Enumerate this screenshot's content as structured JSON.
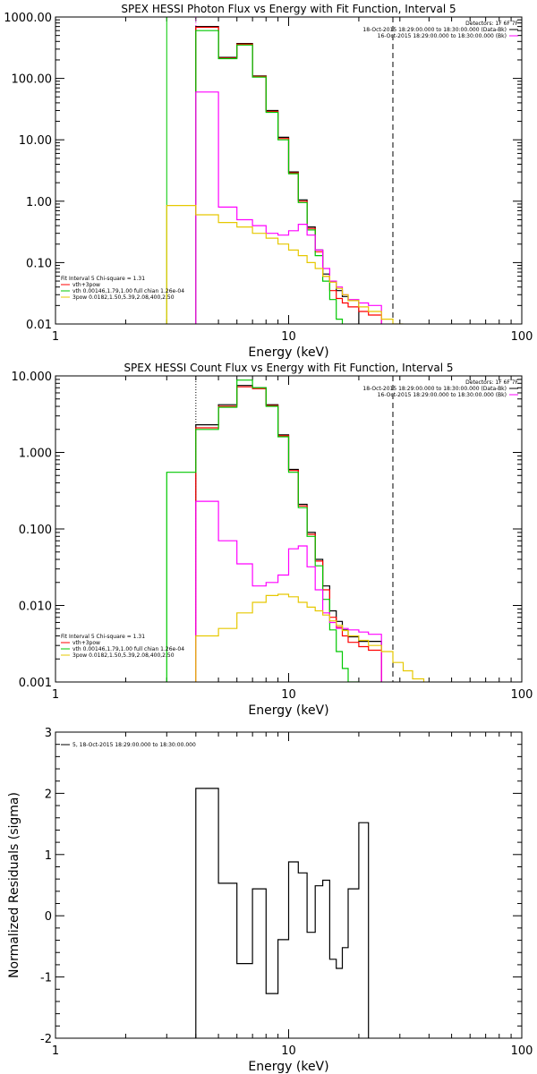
{
  "chart_data": [
    {
      "type": "line",
      "step": true,
      "title": "SPEX HESSI Photon Flux vs Energy with Fit Function, Interval 5",
      "xlabel": "Energy (keV)",
      "ylabel": "",
      "xscale": "log",
      "yscale": "log",
      "xlim": [
        1,
        100
      ],
      "ylim": [
        0.01,
        1000
      ],
      "xticks": [
        1,
        10,
        100
      ],
      "xtick_labels": [
        "1",
        "10",
        "100"
      ],
      "yticks": [
        0.01,
        0.1,
        1,
        10,
        100,
        1000
      ],
      "ytick_labels": [
        "0.01",
        "0.10",
        "1.00",
        "10.00",
        "100.00",
        "1000.00"
      ],
      "vlines": [
        {
          "x": 3.0,
          "style": "solid",
          "color": "#00c800"
        },
        {
          "x": 4.0,
          "style": "dotted",
          "color": "#ff00ff"
        },
        {
          "x": 28.0,
          "style": "dashed",
          "color": "#000000"
        }
      ],
      "edges": [
        3,
        4,
        5,
        6,
        7,
        8,
        9,
        10,
        11,
        12,
        13,
        14,
        15,
        16,
        17,
        18,
        20,
        22,
        25,
        28,
        31,
        34
      ],
      "series": [
        {
          "label": "vth+3pow",
          "color": "#000000",
          "values": [
            null,
            700,
            220,
            370,
            110,
            30,
            11,
            3.0,
            1.05,
            0.38,
            0.16,
            0.065,
            0.05,
            0.035,
            0.028,
            0.024,
            null,
            null,
            null,
            null,
            null
          ]
        },
        {
          "label": "",
          "color": "#ff0000",
          "values": [
            null,
            680,
            215,
            360,
            108,
            29,
            10.5,
            2.9,
            1.0,
            0.36,
            0.15,
            0.06,
            0.035,
            0.026,
            0.022,
            0.019,
            0.016,
            0.014,
            null,
            null,
            null
          ]
        },
        {
          "label": "vth 0.00146,1.79,1.00  full chian 1.26e-04",
          "color": "#00c800",
          "values": [
            null,
            600,
            210,
            350,
            105,
            28,
            10,
            2.8,
            0.95,
            0.34,
            0.13,
            0.05,
            0.025,
            0.012,
            0.008,
            null,
            null,
            null,
            null,
            null,
            null
          ]
        },
        {
          "label": "",
          "color": "#ff00ff",
          "values": [
            null,
            60,
            0.8,
            0.5,
            0.4,
            0.3,
            0.28,
            0.33,
            0.42,
            0.28,
            0.16,
            0.08,
            0.05,
            0.04,
            0.03,
            0.025,
            0.022,
            0.02,
            null,
            null,
            null
          ]
        },
        {
          "label": "3pow 0.0182,1.50,5.39,2.08,400,2.50",
          "color": "#e6c800",
          "values": [
            0.85,
            0.6,
            0.45,
            0.38,
            0.3,
            0.25,
            0.2,
            0.16,
            0.13,
            0.1,
            0.08,
            0.06,
            0.048,
            0.038,
            0.03,
            0.024,
            0.019,
            0.016,
            0.012,
            0.01,
            null
          ]
        }
      ],
      "legend": {
        "placement": "bottom-left",
        "lines": [
          {
            "text": "Fit Interval 5   Chi-square = 1.31",
            "color": ""
          },
          {
            "text": "vth+3pow",
            "color": "#ff0000"
          },
          {
            "text": "vth 0.00146,1.79,1.00  full chian 1.26e-04",
            "color": "#00c800"
          },
          {
            "text": "3pow 0.0182,1.50,5.39,2.08,400,2.50",
            "color": "#e6c800"
          }
        ]
      },
      "annotations": [
        {
          "text": "Detectors: 1F 6F 7F",
          "color": ""
        },
        {
          "text": "18-Oct-2015 18:29:00.000 to 18:30:00.000 (Data-Bk)",
          "color": "#000000"
        },
        {
          "text": "16-Oct-2015 18:29:00.000 to 18:30:00.000 (Bk)",
          "color": "#ff00ff"
        }
      ]
    },
    {
      "type": "line",
      "step": true,
      "title": "SPEX HESSI Count Flux vs Energy with Fit Function, Interval 5",
      "xlabel": "Energy (keV)",
      "ylabel": "",
      "xscale": "log",
      "yscale": "log",
      "xlim": [
        1,
        100
      ],
      "ylim": [
        0.001,
        10
      ],
      "xticks": [
        1,
        10,
        100
      ],
      "xtick_labels": [
        "1",
        "10",
        "100"
      ],
      "yticks": [
        0.001,
        0.01,
        0.1,
        1,
        10
      ],
      "ytick_labels": [
        "0.001",
        "0.010",
        "0.100",
        "1.000",
        "10.000"
      ],
      "vlines": [
        {
          "x": 4.0,
          "style": "dotted",
          "color": "#000000"
        },
        {
          "x": 28.0,
          "style": "dashed",
          "color": "#000000"
        }
      ],
      "edges": [
        3,
        4,
        5,
        6,
        7,
        8,
        9,
        10,
        11,
        12,
        13,
        14,
        15,
        16,
        17,
        18,
        20,
        22,
        25,
        28,
        31,
        34,
        38,
        42
      ],
      "series": [
        {
          "label": "vth+3pow",
          "color": "#000000",
          "values": [
            null,
            2.3,
            4.2,
            7.5,
            7.0,
            4.2,
            1.7,
            0.6,
            0.21,
            0.09,
            0.04,
            0.018,
            0.0085,
            0.0062,
            0.0048,
            0.0039,
            0.0034,
            0.0034,
            null,
            null,
            null,
            null,
            null
          ]
        },
        {
          "label": "",
          "color": "#ff0000",
          "values": [
            null,
            2.1,
            4.0,
            7.2,
            6.8,
            4.1,
            1.65,
            0.58,
            0.2,
            0.085,
            0.038,
            0.016,
            0.007,
            0.0052,
            0.004,
            0.0033,
            0.0029,
            0.0026,
            null,
            null,
            null,
            null,
            null
          ]
        },
        {
          "label": "vth 0.00146,1.79,1.00  full chian 1.26e-04",
          "color": "#00c800",
          "values": [
            0.55,
            2.0,
            3.9,
            8.8,
            7.0,
            4.0,
            1.6,
            0.55,
            0.19,
            0.08,
            0.033,
            0.012,
            0.0048,
            0.0025,
            0.0015,
            0.001,
            null,
            null,
            null,
            null,
            null,
            null,
            null
          ]
        },
        {
          "label": "",
          "color": "#ff00ff",
          "values": [
            null,
            0.23,
            0.07,
            0.035,
            0.018,
            0.02,
            0.025,
            0.055,
            0.06,
            0.032,
            0.016,
            0.008,
            0.006,
            0.005,
            0.005,
            0.0048,
            0.0045,
            0.0042,
            null,
            null,
            null,
            null,
            null
          ]
        },
        {
          "label": "3pow 0.0182,1.50,5.39,2.08,400,2.50",
          "color": "#e6c800",
          "values": [
            null,
            0.004,
            0.005,
            0.008,
            0.011,
            0.0135,
            0.014,
            0.013,
            0.011,
            0.0095,
            0.0085,
            0.0075,
            0.0063,
            0.0055,
            0.0047,
            0.004,
            0.0035,
            0.003,
            0.0025,
            0.0018,
            0.0014,
            0.0011,
            null
          ]
        }
      ],
      "legend": {
        "placement": "bottom-left",
        "lines": [
          {
            "text": "Fit Interval 5   Chi-square = 1.31",
            "color": ""
          },
          {
            "text": "vth+3pow",
            "color": "#ff0000"
          },
          {
            "text": "vth 0.00146,1.79,1.00  full chian 1.26e-04",
            "color": "#00c800"
          },
          {
            "text": "3pow 0.0182,1.50,5.39,2.08,400,2.50",
            "color": "#e6c800"
          }
        ]
      },
      "annotations": [
        {
          "text": "Detectors: 1F 6F 7F",
          "color": ""
        },
        {
          "text": "18-Oct-2015 18:29:00.000 to 18:30:00.000 (Data-Bk)",
          "color": "#000000"
        },
        {
          "text": "16-Oct-2015 18:29:00.000 to 18:30:00.000 (Bk)",
          "color": "#ff00ff"
        }
      ]
    },
    {
      "type": "line",
      "step": true,
      "title": "",
      "xlabel": "Energy (keV)",
      "ylabel": "Normalized Residuals (sigma)",
      "xscale": "log",
      "yscale": "linear",
      "xlim": [
        1,
        100
      ],
      "ylim": [
        -2,
        3
      ],
      "xticks": [
        1,
        10,
        100
      ],
      "xtick_labels": [
        "1",
        "10",
        "100"
      ],
      "yticks": [
        -2,
        -1,
        0,
        1,
        2,
        3
      ],
      "ytick_labels": [
        "-2",
        "-1",
        "0",
        "1",
        "2",
        "3"
      ],
      "vlines": [],
      "edges": [
        4,
        5,
        6,
        7,
        8,
        9,
        10,
        11,
        12,
        13,
        14,
        15,
        16,
        17,
        18,
        20,
        22,
        25,
        28
      ],
      "series": [
        {
          "label": "5, 18-Oct-2015 18:29:00.000 to 18:30:00.000",
          "color": "#000000",
          "values": [
            2.08,
            0.53,
            -0.78,
            0.44,
            -1.27,
            -0.39,
            0.88,
            0.7,
            -0.27,
            0.49,
            0.58,
            -0.71,
            -0.86,
            -0.52,
            0.44,
            1.52,
            null,
            null
          ]
        }
      ],
      "legend": {
        "placement": "top-left",
        "lines": [
          {
            "text": "5, 18-Oct-2015 18:29:00.000 to 18:30:00.000",
            "color": "#000000"
          }
        ]
      },
      "annotations": []
    }
  ]
}
